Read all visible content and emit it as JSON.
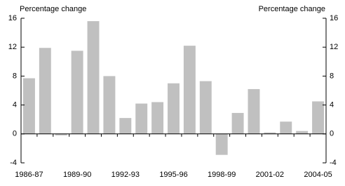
{
  "chart_data": {
    "type": "bar",
    "y_label": "Percentage change",
    "y2_label": "Percentage change",
    "categories": [
      "1986-87",
      null,
      null,
      "1989-90",
      null,
      null,
      "1992-93",
      null,
      null,
      "1995-96",
      null,
      null,
      "1998-99",
      null,
      null,
      "2001-02",
      null,
      null,
      "2004-05"
    ],
    "values": [
      7.7,
      11.9,
      -0.2,
      11.5,
      15.6,
      8.0,
      2.2,
      4.2,
      4.4,
      7.0,
      12.2,
      7.3,
      -2.9,
      2.9,
      6.2,
      0.2,
      1.7,
      0.4,
      4.5
    ],
    "color": "#c0c0c0",
    "ylim": [
      -4,
      16
    ],
    "yticks": [
      -4,
      0,
      4,
      8,
      12,
      16
    ],
    "y2lim": [
      -4,
      16
    ],
    "y2ticks": [
      -4,
      0,
      4,
      8,
      12,
      16
    ]
  }
}
